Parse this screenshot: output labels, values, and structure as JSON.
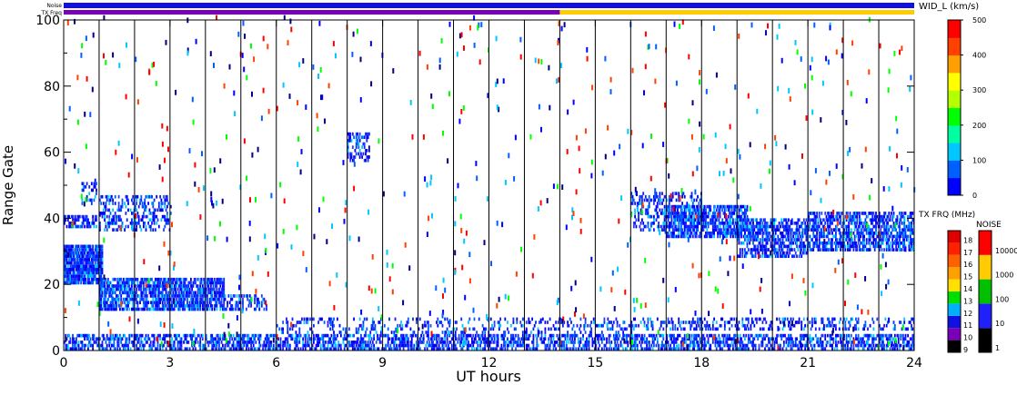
{
  "chart_data": {
    "type": "heatmap",
    "xlabel": "UT hours",
    "ylabel": "Range Gate",
    "xlim": [
      0,
      24
    ],
    "ylim": [
      0,
      100
    ],
    "x_ticks": [
      "0",
      "3",
      "6",
      "9",
      "12",
      "15",
      "18",
      "21",
      "24"
    ],
    "y_ticks": [
      "0",
      "20",
      "40",
      "60",
      "80",
      "100"
    ],
    "x_tick_values": [
      0,
      3,
      6,
      9,
      12,
      15,
      18,
      21,
      24
    ],
    "y_tick_values": [
      0,
      20,
      40,
      60,
      80,
      100
    ],
    "hour_marker_lines": [
      1,
      2,
      3,
      4,
      5,
      6,
      7,
      8,
      9,
      10,
      11,
      12,
      13,
      14,
      15,
      16,
      17,
      18,
      19,
      20,
      21,
      22,
      23
    ],
    "strips": {
      "noise_label": "Noise",
      "txfreq_label": "TX Freq",
      "noise_color": "#1010e0",
      "txfreq_segments": [
        {
          "start": 0,
          "end": 14,
          "color": "#7a00b8"
        },
        {
          "start": 14,
          "end": 24,
          "color": "#ffcc00"
        }
      ]
    },
    "scatter_bands": [
      {
        "t0": 0.0,
        "t1": 1.1,
        "r0": 20,
        "r1": 32,
        "density": 0.9
      },
      {
        "t0": 0.0,
        "t1": 0.9,
        "r0": 37,
        "r1": 41,
        "density": 0.6
      },
      {
        "t0": 0.5,
        "t1": 0.9,
        "r0": 44,
        "r1": 52,
        "density": 0.35
      },
      {
        "t0": 1.0,
        "t1": 3.0,
        "r0": 36,
        "r1": 47,
        "density": 0.35
      },
      {
        "t0": 1.0,
        "t1": 4.5,
        "r0": 12,
        "r1": 22,
        "density": 0.75
      },
      {
        "t0": 4.5,
        "t1": 5.7,
        "r0": 12,
        "r1": 17,
        "density": 0.4
      },
      {
        "t0": 8.0,
        "t1": 8.6,
        "r0": 57,
        "r1": 66,
        "density": 0.35
      },
      {
        "t0": 0.0,
        "t1": 24.0,
        "r0": 0,
        "r1": 5,
        "density": 0.55
      },
      {
        "t0": 6.0,
        "t1": 16.0,
        "r0": 5,
        "r1": 10,
        "density": 0.2
      },
      {
        "t0": 16.0,
        "t1": 18.0,
        "r0": 36,
        "r1": 48,
        "density": 0.35
      },
      {
        "t0": 17.0,
        "t1": 19.3,
        "r0": 34,
        "r1": 44,
        "density": 0.65
      },
      {
        "t0": 19.0,
        "t1": 21.0,
        "r0": 28,
        "r1": 40,
        "density": 0.6
      },
      {
        "t0": 21.0,
        "t1": 24.0,
        "r0": 30,
        "r1": 42,
        "density": 0.6
      },
      {
        "t0": 16.0,
        "t1": 24.0,
        "r0": 6,
        "r1": 10,
        "density": 0.3
      }
    ],
    "wid_colorbar": {
      "title": "WID_L (km/s)",
      "min": 0,
      "max": 500,
      "ticks": [
        "0",
        "100",
        "200",
        "300",
        "400",
        "500"
      ],
      "tick_values": [
        0,
        100,
        200,
        300,
        400,
        500
      ],
      "colors": [
        "#0000ff",
        "#0060ff",
        "#00c8ff",
        "#00ffa0",
        "#00ff00",
        "#b4ff00",
        "#ffff00",
        "#ffa000",
        "#ff4000",
        "#ff0000"
      ]
    },
    "txfrq_colorbar": {
      "title": "TX FRQ (MHz)",
      "ticks": [
        "9",
        "10",
        "11",
        "12",
        "13",
        "14",
        "15",
        "16",
        "17",
        "18"
      ],
      "colors": [
        "#000000",
        "#7a00b8",
        "#1010e0",
        "#00b0ff",
        "#00e000",
        "#ffe000",
        "#ffa000",
        "#ff6000",
        "#ff2000",
        "#e00000"
      ]
    },
    "noise_colorbar": {
      "title": "NOISE",
      "ticks": [
        "1",
        "10",
        "100",
        "1000",
        "10000"
      ],
      "colors": [
        "#000000",
        "#2020ff",
        "#00c000",
        "#ffcc00",
        "#ff0000"
      ]
    }
  }
}
